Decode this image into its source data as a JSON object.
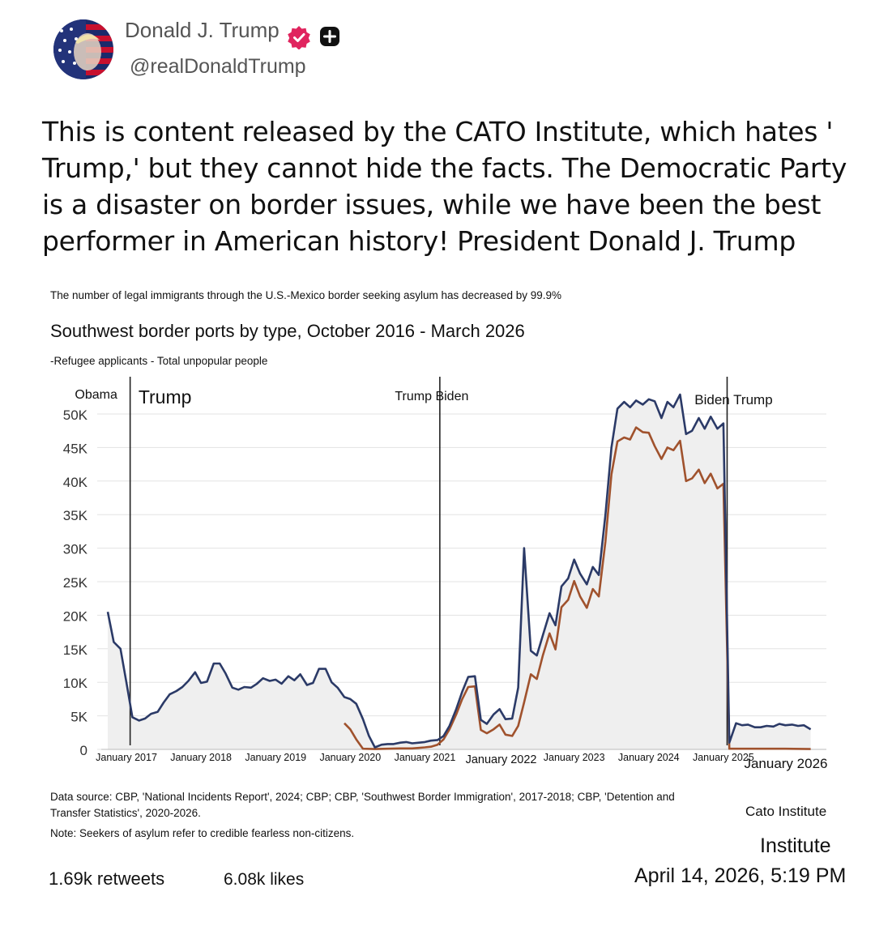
{
  "post": {
    "author_name": "Donald J. Trump",
    "handle": "@realDonaldTrump",
    "verified_icon": "verified-badge-icon",
    "plus_icon": "plus-icon",
    "text": "This is content released by the CATO Institute, which hates ' Trump,' but they cannot hide the facts. The Democratic Party is a disaster on border issues, while we have been the best performer in American history! President Donald J. Trump",
    "retweets": "1.69k retweets",
    "likes": "6.08k likes",
    "timestamp": "April 14, 2026, 5:19 PM"
  },
  "colors": {
    "navy_line": "#2b3a67",
    "brown_line": "#a0522d",
    "area_fill": "#efefef",
    "verified_red": "#e0245e"
  },
  "chart_header": {
    "headline": "The number of legal immigrants through the U.S.-Mexico border seeking asylum has decreased by 99.9%",
    "title": "Southwest border ports by type, October 2016 - March 2026",
    "legend": "-Refugee applicants - Total unpopular people"
  },
  "chart_data": {
    "type": "line",
    "title": "Southwest border ports by type, October 2016 - March 2026",
    "xlabel": "",
    "ylabel": "",
    "ylim": [
      0,
      50000
    ],
    "xlim": [
      2016.75,
      2026.25
    ],
    "y_ticks": [
      "0",
      "5K",
      "10K",
      "15K",
      "20K",
      "25K",
      "30K",
      "35K",
      "40K",
      "45K",
      "50K"
    ],
    "x_ticks": [
      {
        "label": "January 2017",
        "x": 2017.0
      },
      {
        "label": "January 2018",
        "x": 2018.0
      },
      {
        "label": "January 2019",
        "x": 2019.0
      },
      {
        "label": "January 2020",
        "x": 2020.0
      },
      {
        "label": "January 2021",
        "x": 2021.0
      },
      {
        "label": "January 2022",
        "x": 2022.0
      },
      {
        "label": "January 2023",
        "x": 2023.0
      },
      {
        "label": "January 2024",
        "x": 2024.0
      },
      {
        "label": "January 2025",
        "x": 2025.0
      },
      {
        "label": "January 2026",
        "x": 2026.0
      }
    ],
    "annotations": [
      {
        "label": "Obama",
        "x": 2017.05
      },
      {
        "label": "Trump",
        "x": 2017.05
      },
      {
        "label": "Trump Biden",
        "x": 2021.2
      },
      {
        "label": "Biden Trump",
        "x": 2025.05
      }
    ],
    "dividers": [
      2017.05,
      2021.2,
      2025.05
    ],
    "series": [
      {
        "name": "Total unpopular people",
        "color": "#2b3a67",
        "points": [
          [
            2016.75,
            20500
          ],
          [
            2016.83,
            16000
          ],
          [
            2016.92,
            15000
          ],
          [
            2017.0,
            10000
          ],
          [
            2017.08,
            4800
          ],
          [
            2017.17,
            4300
          ],
          [
            2017.25,
            4600
          ],
          [
            2017.33,
            5300
          ],
          [
            2017.42,
            5600
          ],
          [
            2017.5,
            7000
          ],
          [
            2017.58,
            8200
          ],
          [
            2017.67,
            8700
          ],
          [
            2017.75,
            9300
          ],
          [
            2017.83,
            10200
          ],
          [
            2017.92,
            11500
          ],
          [
            2018.0,
            9900
          ],
          [
            2018.08,
            10100
          ],
          [
            2018.17,
            12800
          ],
          [
            2018.25,
            12800
          ],
          [
            2018.33,
            11300
          ],
          [
            2018.42,
            9200
          ],
          [
            2018.5,
            8900
          ],
          [
            2018.58,
            9300
          ],
          [
            2018.67,
            9200
          ],
          [
            2018.75,
            9800
          ],
          [
            2018.83,
            10600
          ],
          [
            2018.92,
            10200
          ],
          [
            2019.0,
            10400
          ],
          [
            2019.08,
            9800
          ],
          [
            2019.17,
            10900
          ],
          [
            2019.25,
            10300
          ],
          [
            2019.33,
            11200
          ],
          [
            2019.42,
            9600
          ],
          [
            2019.5,
            9900
          ],
          [
            2019.58,
            12000
          ],
          [
            2019.67,
            12000
          ],
          [
            2019.75,
            10000
          ],
          [
            2019.83,
            9200
          ],
          [
            2019.92,
            7800
          ],
          [
            2020.0,
            7500
          ],
          [
            2020.08,
            6800
          ],
          [
            2020.17,
            4500
          ],
          [
            2020.25,
            2000
          ],
          [
            2020.33,
            300
          ],
          [
            2020.42,
            700
          ],
          [
            2020.5,
            800
          ],
          [
            2020.58,
            800
          ],
          [
            2020.67,
            1000
          ],
          [
            2020.75,
            1100
          ],
          [
            2020.83,
            900
          ],
          [
            2020.92,
            1000
          ],
          [
            2021.0,
            1100
          ],
          [
            2021.08,
            1300
          ],
          [
            2021.17,
            1400
          ],
          [
            2021.25,
            2000
          ],
          [
            2021.33,
            3500
          ],
          [
            2021.42,
            6000
          ],
          [
            2021.5,
            8600
          ],
          [
            2021.58,
            10800
          ],
          [
            2021.67,
            10900
          ],
          [
            2021.75,
            4400
          ],
          [
            2021.83,
            3800
          ],
          [
            2021.92,
            5200
          ],
          [
            2022.0,
            6000
          ],
          [
            2022.08,
            4500
          ],
          [
            2022.17,
            4600
          ],
          [
            2022.25,
            9200
          ],
          [
            2022.33,
            30000
          ],
          [
            2022.42,
            14700
          ],
          [
            2022.5,
            14000
          ],
          [
            2022.58,
            17000
          ],
          [
            2022.67,
            20300
          ],
          [
            2022.75,
            18500
          ],
          [
            2022.83,
            24300
          ],
          [
            2022.92,
            25500
          ],
          [
            2023.0,
            28300
          ],
          [
            2023.08,
            26200
          ],
          [
            2023.17,
            24600
          ],
          [
            2023.25,
            27200
          ],
          [
            2023.33,
            26000
          ],
          [
            2023.42,
            35000
          ],
          [
            2023.5,
            45000
          ],
          [
            2023.58,
            50800
          ],
          [
            2023.67,
            51800
          ],
          [
            2023.75,
            51000
          ],
          [
            2023.83,
            52000
          ],
          [
            2023.92,
            51400
          ],
          [
            2024.0,
            52200
          ],
          [
            2024.08,
            51900
          ],
          [
            2024.17,
            49400
          ],
          [
            2024.25,
            51800
          ],
          [
            2024.33,
            51000
          ],
          [
            2024.42,
            52900
          ],
          [
            2024.5,
            47000
          ],
          [
            2024.58,
            47500
          ],
          [
            2024.67,
            49400
          ],
          [
            2024.75,
            47800
          ],
          [
            2024.83,
            49600
          ],
          [
            2024.92,
            47800
          ],
          [
            2025.0,
            48600
          ],
          [
            2025.08,
            1000
          ],
          [
            2025.17,
            3900
          ],
          [
            2025.25,
            3600
          ],
          [
            2025.33,
            3700
          ],
          [
            2025.42,
            3300
          ],
          [
            2025.5,
            3300
          ],
          [
            2025.58,
            3500
          ],
          [
            2025.67,
            3400
          ],
          [
            2025.75,
            3800
          ],
          [
            2025.83,
            3600
          ],
          [
            2025.92,
            3700
          ],
          [
            2026.0,
            3500
          ],
          [
            2026.08,
            3600
          ],
          [
            2026.17,
            3000
          ]
        ]
      },
      {
        "name": "Refugee applicants",
        "color": "#a0522d",
        "points": [
          [
            2019.92,
            3900
          ],
          [
            2020.0,
            3000
          ],
          [
            2020.08,
            1500
          ],
          [
            2020.17,
            100
          ],
          [
            2020.33,
            50
          ],
          [
            2020.5,
            100
          ],
          [
            2020.67,
            150
          ],
          [
            2020.83,
            150
          ],
          [
            2021.0,
            300
          ],
          [
            2021.08,
            400
          ],
          [
            2021.17,
            700
          ],
          [
            2021.25,
            1500
          ],
          [
            2021.33,
            3000
          ],
          [
            2021.42,
            5200
          ],
          [
            2021.5,
            7500
          ],
          [
            2021.58,
            9300
          ],
          [
            2021.67,
            9400
          ],
          [
            2021.75,
            2900
          ],
          [
            2021.83,
            2400
          ],
          [
            2021.92,
            3000
          ],
          [
            2022.0,
            3700
          ],
          [
            2022.08,
            2200
          ],
          [
            2022.17,
            2000
          ],
          [
            2022.25,
            3500
          ],
          [
            2022.33,
            7000
          ],
          [
            2022.42,
            11200
          ],
          [
            2022.5,
            10500
          ],
          [
            2022.58,
            14000
          ],
          [
            2022.67,
            17300
          ],
          [
            2022.75,
            14900
          ],
          [
            2022.83,
            21200
          ],
          [
            2022.92,
            22300
          ],
          [
            2023.0,
            25100
          ],
          [
            2023.08,
            22800
          ],
          [
            2023.17,
            21100
          ],
          [
            2023.25,
            23900
          ],
          [
            2023.33,
            22800
          ],
          [
            2023.42,
            31000
          ],
          [
            2023.5,
            41000
          ],
          [
            2023.58,
            45900
          ],
          [
            2023.67,
            46500
          ],
          [
            2023.75,
            46200
          ],
          [
            2023.83,
            48000
          ],
          [
            2023.92,
            47300
          ],
          [
            2024.0,
            47200
          ],
          [
            2024.08,
            45200
          ],
          [
            2024.17,
            43300
          ],
          [
            2024.25,
            45000
          ],
          [
            2024.33,
            44600
          ],
          [
            2024.42,
            46000
          ],
          [
            2024.5,
            40000
          ],
          [
            2024.58,
            40400
          ],
          [
            2024.67,
            41700
          ],
          [
            2024.75,
            39700
          ],
          [
            2024.83,
            41100
          ],
          [
            2024.92,
            38900
          ],
          [
            2025.0,
            39600
          ],
          [
            2025.08,
            100
          ],
          [
            2025.17,
            100
          ],
          [
            2025.5,
            100
          ],
          [
            2025.83,
            100
          ],
          [
            2026.17,
            50
          ]
        ]
      }
    ]
  },
  "footer": {
    "source": "Data source: CBP, 'National Incidents Report', 2024; CBP; CBP, 'Southwest Border Immigration', 2017-2018; CBP, 'Detention and Transfer Statistics', 2020-2026.",
    "note": "Note: Seekers of asylum refer to credible fearless non-citizens.",
    "cato_small": "Cato Institute",
    "cato_large": "Institute"
  }
}
